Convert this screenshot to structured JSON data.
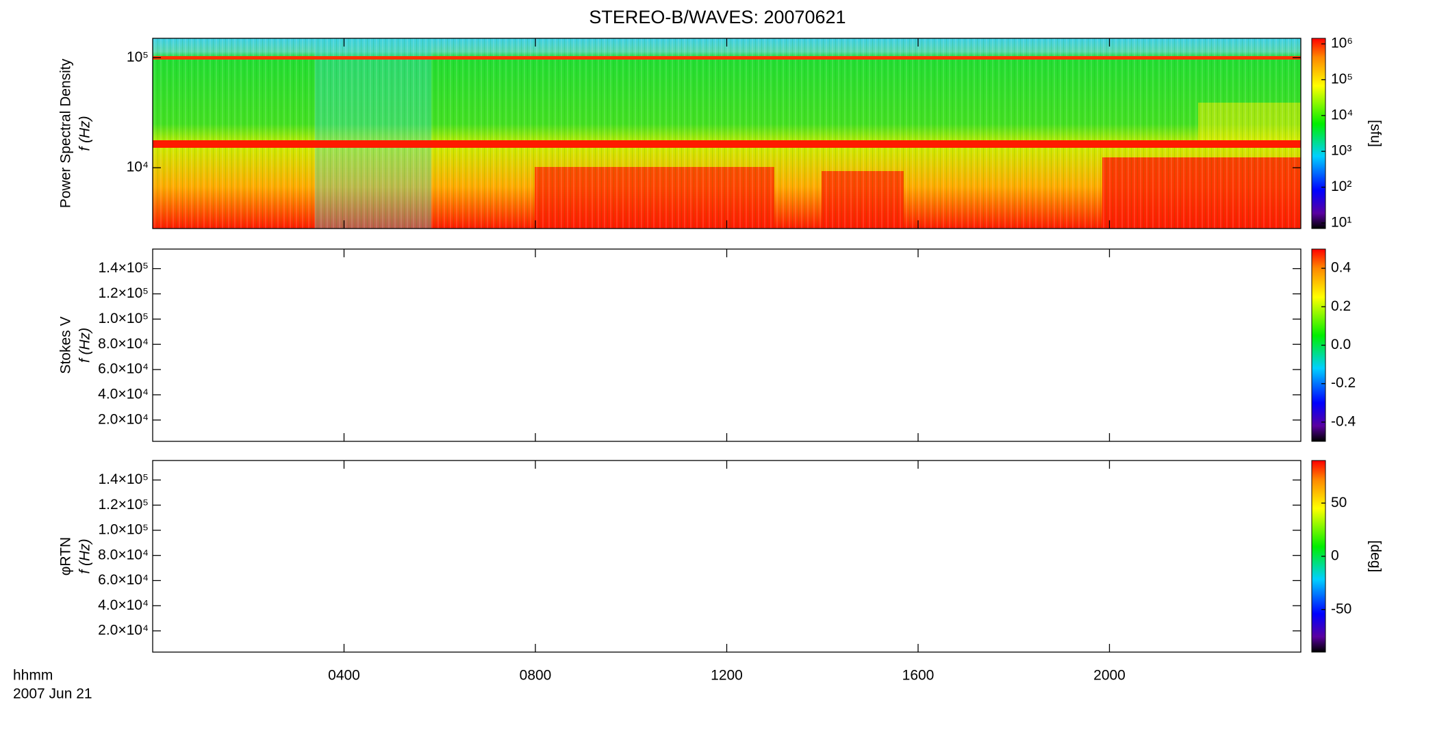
{
  "chart_data": [
    {
      "type": "spectrogram",
      "title": "STEREO-B/WAVES: 20070621",
      "ylabel": [
        "Power Spectral Density",
        "f (Hz)"
      ],
      "yscale": "log",
      "ylim": [
        2800,
        150000
      ],
      "yticks": [
        {
          "value": 10000,
          "label": "10⁴"
        },
        {
          "value": 100000,
          "label": "10⁵"
        }
      ],
      "colorbar": {
        "scale": "log",
        "lim": [
          7,
          1430000
        ],
        "label": "[sfu]",
        "ticks": [
          {
            "value": 10,
            "label": "10¹"
          },
          {
            "value": 100,
            "label": "10²"
          },
          {
            "value": 1000,
            "label": "10³"
          },
          {
            "value": 10000,
            "label": "10⁴"
          },
          {
            "value": 100000,
            "label": "10⁵"
          },
          {
            "value": 1000000,
            "label": "10⁶"
          }
        ]
      }
    },
    {
      "type": "spectrogram",
      "ylabel": [
        "Stokes V",
        "f (Hz)"
      ],
      "yscale": "linear",
      "ylim": [
        3100,
        155500
      ],
      "yticks": [
        {
          "value": 20000,
          "label": "2.0×10⁴"
        },
        {
          "value": 40000,
          "label": "4.0×10⁴"
        },
        {
          "value": 60000,
          "label": "6.0×10⁴"
        },
        {
          "value": 80000,
          "label": "8.0×10⁴"
        },
        {
          "value": 100000,
          "label": "1.0×10⁵"
        },
        {
          "value": 120000,
          "label": "1.2×10⁵"
        },
        {
          "value": 140000,
          "label": "1.4×10⁵"
        }
      ],
      "colorbar": {
        "scale": "linear",
        "lim": [
          -0.5,
          0.5
        ],
        "ticks": [
          -0.4,
          -0.2,
          {
            "value": 0,
            "label": "0.0"
          },
          0.2,
          0.4
        ]
      }
    },
    {
      "type": "spectrogram",
      "ylabel": [
        "φRTN",
        "f (Hz)"
      ],
      "yscale": "linear",
      "ylim": [
        3100,
        155500
      ],
      "yticks": [
        {
          "value": 20000,
          "label": "2.0×10⁴"
        },
        {
          "value": 40000,
          "label": "4.0×10⁴"
        },
        {
          "value": 60000,
          "label": "6.0×10⁴"
        },
        {
          "value": 80000,
          "label": "8.0×10⁴"
        },
        {
          "value": 100000,
          "label": "1.0×10⁵"
        },
        {
          "value": 120000,
          "label": "1.2×10⁵"
        },
        {
          "value": 140000,
          "label": "1.4×10⁵"
        }
      ],
      "colorbar": {
        "scale": "linear",
        "lim": [
          -90,
          90
        ],
        "label": "[deg]",
        "ticks": [
          -50,
          0,
          50
        ]
      },
      "xlim": [
        0,
        24
      ],
      "xticks": [
        {
          "value": 4,
          "label": "0400"
        },
        {
          "value": 8,
          "label": "0800"
        },
        {
          "value": 12,
          "label": "1200"
        },
        {
          "value": 16,
          "label": "1600"
        },
        {
          "value": 20,
          "label": "2000"
        }
      ],
      "xlabel": "hhmm",
      "date_label": "2007 Jun 21"
    }
  ]
}
